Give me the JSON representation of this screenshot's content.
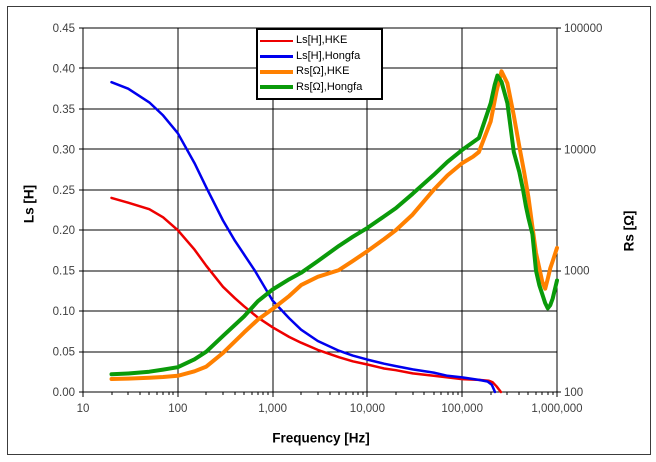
{
  "window": {
    "background": "#FFFFFF",
    "frame_border_color": "#3C3C3C"
  },
  "chart_data": {
    "type": "line",
    "title": "",
    "grid": true,
    "grid_color": "#000000",
    "tick_text_color": "#404040",
    "legend_position": "top-center",
    "x_axis": {
      "label": "Frequency [Hz]",
      "scale": "log",
      "min": 10,
      "max": 1000000,
      "tick_values": [
        10,
        100,
        1000,
        10000,
        100000,
        1000000
      ],
      "tick_labels": [
        "10",
        "100",
        "1,000",
        "10,000",
        "100,000",
        "1,000,000"
      ],
      "minor_ticks": true
    },
    "y_axis_left": {
      "label": "Ls [H]",
      "scale": "linear",
      "min": 0,
      "max": 0.45,
      "step": 0.05,
      "tick_labels": [
        "0.00",
        "0.05",
        "0.10",
        "0.15",
        "0.20",
        "0.25",
        "0.30",
        "0.35",
        "0.40",
        "0.45"
      ]
    },
    "y_axis_right": {
      "label": "Rs [Ω]",
      "scale": "log",
      "min": 100,
      "max": 100000,
      "tick_values": [
        100,
        1000,
        10000,
        100000
      ],
      "tick_labels": [
        "100",
        "1000",
        "10000",
        "100000"
      ]
    },
    "series": [
      {
        "label": "Ls[H],HKE",
        "axis": "left",
        "color": "#EE0000",
        "points": [
          [
            20,
            0.24
          ],
          [
            30,
            0.234
          ],
          [
            50,
            0.226
          ],
          [
            70,
            0.216
          ],
          [
            100,
            0.2
          ],
          [
            150,
            0.176
          ],
          [
            200,
            0.156
          ],
          [
            300,
            0.13
          ],
          [
            400,
            0.116
          ],
          [
            500,
            0.106
          ],
          [
            700,
            0.092
          ],
          [
            1000,
            0.08
          ],
          [
            1500,
            0.068
          ],
          [
            2000,
            0.061
          ],
          [
            3000,
            0.052
          ],
          [
            5000,
            0.043
          ],
          [
            7000,
            0.038
          ],
          [
            10000,
            0.034
          ],
          [
            15000,
            0.029
          ],
          [
            20000,
            0.027
          ],
          [
            30000,
            0.023
          ],
          [
            50000,
            0.02
          ],
          [
            70000,
            0.018
          ],
          [
            100000,
            0.016
          ],
          [
            150000,
            0.015
          ],
          [
            190000,
            0.014
          ],
          [
            210000,
            0.012
          ],
          [
            230000,
            0.007
          ],
          [
            256000,
            0.0
          ]
        ]
      },
      {
        "label": "Ls[H],Hongfa",
        "axis": "left",
        "color": "#0000EE",
        "points": [
          [
            20,
            0.383
          ],
          [
            30,
            0.375
          ],
          [
            50,
            0.358
          ],
          [
            70,
            0.342
          ],
          [
            100,
            0.32
          ],
          [
            150,
            0.283
          ],
          [
            200,
            0.253
          ],
          [
            300,
            0.212
          ],
          [
            400,
            0.187
          ],
          [
            500,
            0.17
          ],
          [
            650,
            0.15
          ],
          [
            1000,
            0.113
          ],
          [
            1500,
            0.091
          ],
          [
            2000,
            0.077
          ],
          [
            3000,
            0.063
          ],
          [
            5000,
            0.051
          ],
          [
            7000,
            0.045
          ],
          [
            10000,
            0.04
          ],
          [
            15000,
            0.035
          ],
          [
            20000,
            0.032
          ],
          [
            30000,
            0.028
          ],
          [
            50000,
            0.024
          ],
          [
            70000,
            0.02
          ],
          [
            100000,
            0.018
          ],
          [
            150000,
            0.015
          ],
          [
            185000,
            0.013
          ],
          [
            205000,
            0.009
          ],
          [
            222000,
            0.0
          ]
        ]
      },
      {
        "label": "Rs[Ω],HKE",
        "axis": "right",
        "color": "#FF8000",
        "points": [
          [
            20,
            128
          ],
          [
            30,
            129
          ],
          [
            50,
            131
          ],
          [
            70,
            133
          ],
          [
            100,
            136
          ],
          [
            150,
            148
          ],
          [
            200,
            162
          ],
          [
            300,
            210
          ],
          [
            500,
            310
          ],
          [
            700,
            395
          ],
          [
            1000,
            483
          ],
          [
            1500,
            620
          ],
          [
            2000,
            760
          ],
          [
            3000,
            890
          ],
          [
            5000,
            1010
          ],
          [
            7000,
            1200
          ],
          [
            10000,
            1450
          ],
          [
            15000,
            1820
          ],
          [
            20000,
            2160
          ],
          [
            30000,
            2900
          ],
          [
            50000,
            4640
          ],
          [
            70000,
            6100
          ],
          [
            100000,
            7700
          ],
          [
            130000,
            8700
          ],
          [
            150000,
            9500
          ],
          [
            200000,
            17000
          ],
          [
            230000,
            30000
          ],
          [
            260000,
            44000
          ],
          [
            300000,
            35000
          ],
          [
            350000,
            19000
          ],
          [
            400000,
            10600
          ],
          [
            450000,
            6500
          ],
          [
            500000,
            4000
          ],
          [
            550000,
            2300
          ],
          [
            600000,
            1400
          ],
          [
            650000,
            1050
          ],
          [
            700000,
            810
          ],
          [
            750000,
            710
          ],
          [
            800000,
            860
          ],
          [
            850000,
            1050
          ],
          [
            900000,
            1200
          ],
          [
            1000000,
            1540
          ]
        ]
      },
      {
        "label": "Rs[Ω],Hongfa",
        "axis": "right",
        "color": "#0A9A0A",
        "points": [
          [
            20,
            140
          ],
          [
            30,
            142
          ],
          [
            50,
            147
          ],
          [
            70,
            153
          ],
          [
            100,
            160
          ],
          [
            150,
            186
          ],
          [
            200,
            215
          ],
          [
            300,
            290
          ],
          [
            500,
            420
          ],
          [
            700,
            560
          ],
          [
            1000,
            700
          ],
          [
            1500,
            850
          ],
          [
            2000,
            960
          ],
          [
            3000,
            1200
          ],
          [
            5000,
            1600
          ],
          [
            7000,
            1900
          ],
          [
            10000,
            2250
          ],
          [
            15000,
            2800
          ],
          [
            20000,
            3280
          ],
          [
            30000,
            4300
          ],
          [
            50000,
            6150
          ],
          [
            70000,
            7900
          ],
          [
            100000,
            9900
          ],
          [
            150000,
            12400
          ],
          [
            200000,
            24000
          ],
          [
            220000,
            34000
          ],
          [
            235000,
            40500
          ],
          [
            260000,
            36000
          ],
          [
            300000,
            24000
          ],
          [
            350000,
            9500
          ],
          [
            400000,
            6500
          ],
          [
            440000,
            4560
          ],
          [
            470000,
            3400
          ],
          [
            500000,
            2700
          ],
          [
            550000,
            2000
          ],
          [
            600000,
            1000
          ],
          [
            650000,
            760
          ],
          [
            700000,
            640
          ],
          [
            750000,
            540
          ],
          [
            800000,
            490
          ],
          [
            850000,
            520
          ],
          [
            900000,
            590
          ],
          [
            1000000,
            830
          ]
        ]
      }
    ]
  }
}
